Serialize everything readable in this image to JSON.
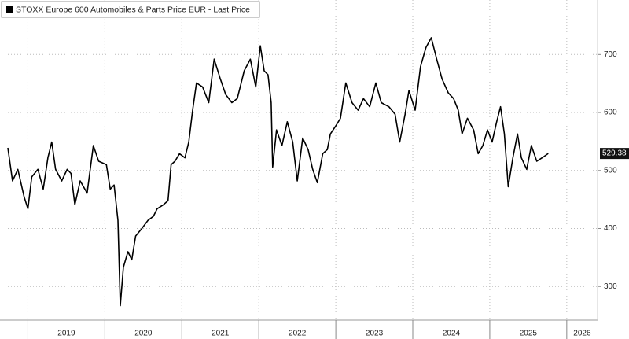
{
  "chart_data": {
    "type": "line",
    "series": [
      {
        "name": "STOXX Europe 600 Automobiles & Parts Price EUR - Last Price",
        "color": "#000000",
        "x": [
          2018.74,
          2018.8,
          2018.87,
          2018.95,
          2019.0,
          2019.05,
          2019.13,
          2019.2,
          2019.26,
          2019.31,
          2019.36,
          2019.44,
          2019.51,
          2019.56,
          2019.61,
          2019.68,
          2019.77,
          2019.85,
          2019.92,
          2020.02,
          2020.07,
          2020.12,
          2020.17,
          2020.2,
          2020.24,
          2020.3,
          2020.35,
          2020.4,
          2020.48,
          2020.56,
          2020.63,
          2020.68,
          2020.76,
          2020.82,
          2020.86,
          2020.91,
          2020.97,
          2021.04,
          2021.09,
          2021.14,
          2021.19,
          2021.27,
          2021.35,
          2021.42,
          2021.5,
          2021.57,
          2021.65,
          2021.72,
          2021.81,
          2021.89,
          2021.96,
          2022.02,
          2022.07,
          2022.12,
          2022.16,
          2022.18,
          2022.23,
          2022.3,
          2022.37,
          2022.44,
          2022.5,
          2022.57,
          2022.64,
          2022.7,
          2022.76,
          2022.83,
          2022.89,
          2022.93,
          2023.0,
          2023.06,
          2023.13,
          2023.21,
          2023.29,
          2023.36,
          2023.44,
          2023.52,
          2023.59,
          2023.69,
          2023.77,
          2023.83,
          2023.9,
          2023.95,
          2024.03,
          2024.1,
          2024.17,
          2024.24,
          2024.31,
          2024.38,
          2024.46,
          2024.53,
          2024.59,
          2024.64,
          2024.71,
          2024.79,
          2024.85,
          2024.91,
          2024.97,
          2025.03,
          2025.09,
          2025.14,
          2025.19,
          2025.24,
          2025.3,
          2025.36,
          2025.41,
          2025.48,
          2025.54,
          2025.61,
          2025.68,
          2025.76
        ],
        "values": [
          539,
          482,
          502,
          455,
          434,
          489,
          502,
          468,
          522,
          549,
          502,
          482,
          502,
          495,
          441,
          482,
          461,
          543,
          516,
          510,
          468,
          475,
          414,
          267,
          333,
          360,
          346,
          387,
          400,
          414,
          421,
          434,
          441,
          448,
          510,
          516,
          529,
          522,
          549,
          604,
          651,
          644,
          617,
          692,
          658,
          631,
          617,
          624,
          672,
          692,
          644,
          715,
          672,
          665,
          617,
          506,
          570,
          543,
          584,
          549,
          482,
          556,
          536,
          502,
          479,
          529,
          536,
          563,
          577,
          590,
          651,
          617,
          604,
          624,
          610,
          651,
          617,
          610,
          597,
          549,
          597,
          638,
          604,
          679,
          712,
          729,
          692,
          658,
          634,
          624,
          604,
          563,
          590,
          570,
          529,
          543,
          570,
          549,
          584,
          610,
          563,
          472,
          522,
          563,
          522,
          502,
          543,
          516,
          522,
          529.38
        ]
      }
    ],
    "xlim": [
      2018.74,
      2026.4
    ],
    "xticks": [
      2019,
      2020,
      2021,
      2022,
      2023,
      2024,
      2025,
      2026
    ],
    "ylim": [
      242,
      794
    ],
    "yticks": [
      300,
      400,
      500,
      600,
      700
    ],
    "grid": true
  }
}
